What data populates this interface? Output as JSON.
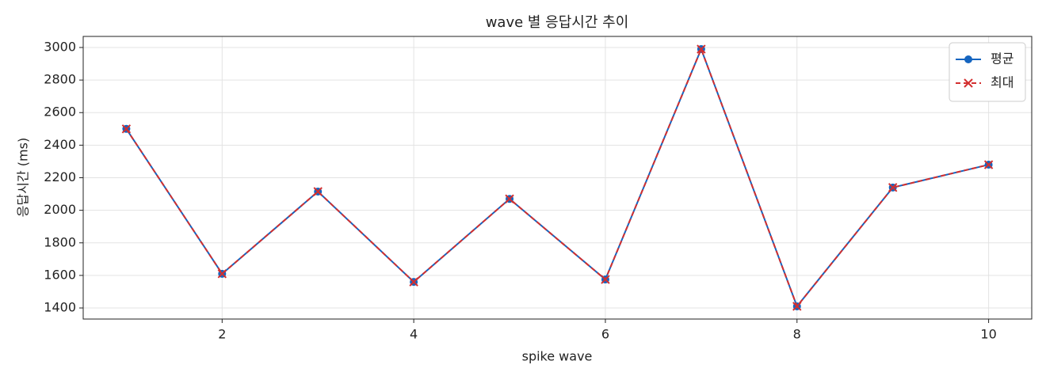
{
  "chart_data": {
    "type": "line",
    "title": "wave 별 응답시간 추이",
    "x_label": "spike wave",
    "y_label": "응답시간 (ms)",
    "x": [
      1,
      2,
      3,
      4,
      5,
      6,
      7,
      8,
      9,
      10
    ],
    "series": [
      {
        "name": "평균",
        "color": "#1565c0",
        "marker": "circle",
        "dash": false,
        "values": [
          2500,
          1610,
          2115,
          1560,
          2070,
          1575,
          2990,
          1410,
          2140,
          2280
        ]
      },
      {
        "name": "최대",
        "color": "#d32f2f",
        "marker": "x",
        "dash": true,
        "values": [
          2500,
          1610,
          2115,
          1560,
          2070,
          1575,
          2990,
          1410,
          2140,
          2280
        ]
      }
    ],
    "xlim": [
      0.55,
      10.45
    ],
    "ylim": [
      1332,
      3068
    ],
    "xticks": [
      2,
      4,
      6,
      8,
      10
    ],
    "yticks": [
      1400,
      1600,
      1800,
      2000,
      2200,
      2400,
      2600,
      2800,
      3000
    ],
    "grid": true,
    "legend": "upper right"
  }
}
